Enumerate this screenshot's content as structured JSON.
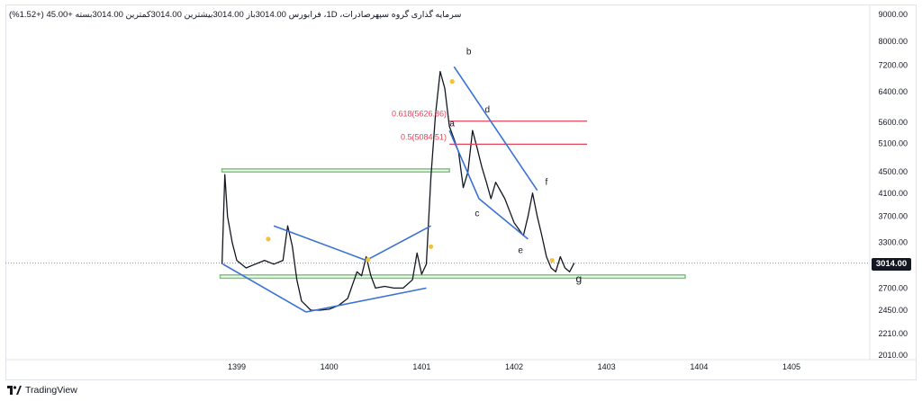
{
  "header": {
    "text": "سرمایه گذاری گروه سپهرصادرات، 1D، فرابورس  3014.00باز  3014.00بیشترین  3014.00کمترین  3014.00بسته  +45.00 (+1.52%)"
  },
  "last_price": "3014.00",
  "footer": {
    "brand": "TradingView"
  },
  "chart_data": {
    "type": "line",
    "title": "",
    "y_scale": "log",
    "ylim": [
      2010,
      9000
    ],
    "y_ticks": [
      "9000.00",
      "8000.00",
      "7200.00",
      "6400.00",
      "5600.00",
      "5100.00",
      "4500.00",
      "4100.00",
      "3700.00",
      "3300.00",
      "2700.00",
      "2450.00",
      "2210.00",
      "2010.00"
    ],
    "x_ticks": [
      "1399",
      "1400",
      "1401",
      "1402",
      "1403",
      "1404",
      "1405"
    ],
    "series": [
      {
        "x": [
          1398.84,
          1398.87,
          1398.9,
          1398.95,
          1399.0,
          1399.1,
          1399.2,
          1399.3,
          1399.4,
          1399.5,
          1399.55,
          1399.6,
          1399.65,
          1399.7,
          1399.75,
          1399.8,
          1399.9,
          1400.0,
          1400.1,
          1400.2,
          1400.3,
          1400.35,
          1400.4,
          1400.45,
          1400.5,
          1400.6,
          1400.7,
          1400.8,
          1400.9,
          1400.95,
          1401.0,
          1401.05,
          1401.1,
          1401.15,
          1401.2,
          1401.25,
          1401.3,
          1401.35,
          1401.4,
          1401.45,
          1401.5,
          1401.55,
          1401.6,
          1401.65,
          1401.7,
          1401.75,
          1401.8,
          1401.9,
          1402.0,
          1402.1,
          1402.15,
          1402.2,
          1402.25,
          1402.3,
          1402.35,
          1402.4,
          1402.45,
          1402.5,
          1402.55,
          1402.6,
          1402.65
        ],
        "y": [
          3000,
          4450,
          3700,
          3300,
          3050,
          2950,
          3000,
          3050,
          3000,
          3050,
          3550,
          3250,
          2800,
          2550,
          2500,
          2450,
          2450,
          2460,
          2500,
          2580,
          2900,
          2850,
          3100,
          2850,
          2700,
          2720,
          2700,
          2700,
          2800,
          3150,
          2870,
          3000,
          4400,
          5800,
          7000,
          6500,
          5500,
          5200,
          4900,
          4200,
          4500,
          5400,
          5000,
          4600,
          4300,
          4000,
          4300,
          4000,
          3600,
          3400,
          3700,
          4100,
          3700,
          3400,
          3100,
          2950,
          2900,
          3100,
          2950,
          2900,
          3014
        ]
      }
    ],
    "fib_levels": [
      {
        "label": "0.618(5626.86)",
        "value": 5626.86
      },
      {
        "label": "0.5(5084.51)",
        "value": 5084.51
      }
    ],
    "support_zones": [
      {
        "low": 4500,
        "high": 4560,
        "from": 1398.84,
        "to": 1401.3
      },
      {
        "low": 2820,
        "high": 2860,
        "from": 1398.82,
        "to": 1403.85
      }
    ],
    "wave_labels": [
      "a",
      "b",
      "c",
      "d",
      "e",
      "f",
      "g"
    ],
    "accent_colors": {
      "candles": "#131722",
      "trendline": "#3a71d4",
      "fib": "#e0455a",
      "zone": "#7dc77d",
      "marker": "#f2c23a"
    }
  }
}
